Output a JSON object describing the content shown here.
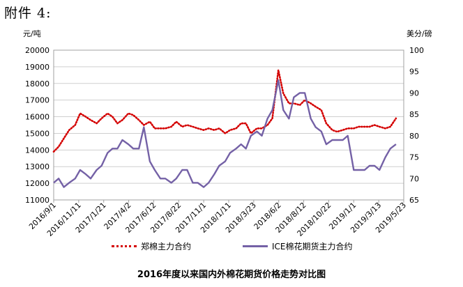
{
  "header": "附件 4:",
  "caption": "2016年度以来国内外棉花期货价格走势对比图",
  "chart_data": {
    "type": "line",
    "title": "2016年度以来国内外棉花期货价格走势对比图",
    "ylabel": "元/吨",
    "y2label": "美分/磅",
    "ylim": [
      11000,
      20000
    ],
    "y2lim": [
      65,
      100
    ],
    "yticks": [
      11000,
      12000,
      13000,
      14000,
      15000,
      16000,
      17000,
      18000,
      19000,
      20000
    ],
    "y2ticks": [
      65,
      70,
      75,
      80,
      85,
      90,
      95,
      100
    ],
    "xlim": [
      "2016-09-01",
      "2019-05-23"
    ],
    "xticks": [
      "2016/9/1",
      "2016/11/11",
      "2017/1/21",
      "2017/4/2",
      "2017/6/12",
      "2017/8/22",
      "2017/11/1",
      "2018/1/11",
      "2018/3/23",
      "2018/6/2",
      "2018/8/12",
      "2018/10/22",
      "2019/1/1",
      "2019/3/13",
      "2019/5/23"
    ],
    "grid": true,
    "legend": "bottom",
    "series": [
      {
        "name": "郑棉主力合约",
        "axis": "left",
        "color": "#d40000",
        "style": "dotted",
        "x": [
          "2016-09-01",
          "2016-09-15",
          "2016-09-30",
          "2016-10-15",
          "2016-11-01",
          "2016-11-15",
          "2016-12-01",
          "2016-12-15",
          "2017-01-01",
          "2017-01-15",
          "2017-02-01",
          "2017-02-15",
          "2017-03-01",
          "2017-03-15",
          "2017-04-01",
          "2017-04-15",
          "2017-05-01",
          "2017-05-15",
          "2017-06-01",
          "2017-06-15",
          "2017-07-01",
          "2017-07-15",
          "2017-08-01",
          "2017-08-15",
          "2017-09-01",
          "2017-09-15",
          "2017-10-01",
          "2017-10-15",
          "2017-11-01",
          "2017-11-15",
          "2017-12-01",
          "2017-12-15",
          "2018-01-01",
          "2018-01-15",
          "2018-02-01",
          "2018-02-15",
          "2018-03-01",
          "2018-03-15",
          "2018-04-01",
          "2018-04-15",
          "2018-05-01",
          "2018-05-15",
          "2018-06-01",
          "2018-06-15",
          "2018-07-01",
          "2018-07-15",
          "2018-08-01",
          "2018-08-15",
          "2018-09-01",
          "2018-09-15",
          "2018-10-01",
          "2018-10-15",
          "2018-11-01",
          "2018-11-15",
          "2018-12-01",
          "2018-12-15",
          "2019-01-01",
          "2019-01-15",
          "2019-02-01",
          "2019-02-15",
          "2019-03-01",
          "2019-03-15",
          "2019-04-01",
          "2019-04-15",
          "2019-05-01"
        ],
        "values": [
          13900,
          14200,
          14700,
          15200,
          15500,
          16200,
          16000,
          15800,
          15600,
          15900,
          16200,
          16000,
          15600,
          15800,
          16200,
          16100,
          15800,
          15500,
          15700,
          15300,
          15300,
          15300,
          15400,
          15700,
          15400,
          15500,
          15400,
          15300,
          15200,
          15300,
          15200,
          15300,
          15000,
          15200,
          15300,
          15600,
          15600,
          15000,
          15300,
          15300,
          15500,
          15900,
          18800,
          17400,
          16800,
          16800,
          16700,
          17000,
          16800,
          16600,
          16400,
          15600,
          15200,
          15100,
          15200,
          15300,
          15300,
          15400,
          15400,
          15400,
          15500,
          15400,
          15300,
          15400,
          15900
        ]
      },
      {
        "name": "ICE棉花期货主力合约",
        "axis": "right",
        "color": "#7461a6",
        "style": "solid",
        "x": [
          "2016-09-01",
          "2016-09-15",
          "2016-09-30",
          "2016-10-15",
          "2016-11-01",
          "2016-11-15",
          "2016-12-01",
          "2016-12-15",
          "2017-01-01",
          "2017-01-15",
          "2017-02-01",
          "2017-02-15",
          "2017-03-01",
          "2017-03-15",
          "2017-04-01",
          "2017-04-15",
          "2017-05-01",
          "2017-05-15",
          "2017-06-01",
          "2017-06-15",
          "2017-07-01",
          "2017-07-15",
          "2017-08-01",
          "2017-08-15",
          "2017-09-01",
          "2017-09-15",
          "2017-10-01",
          "2017-10-15",
          "2017-11-01",
          "2017-11-15",
          "2017-12-01",
          "2017-12-15",
          "2018-01-01",
          "2018-01-15",
          "2018-02-01",
          "2018-02-15",
          "2018-03-01",
          "2018-03-15",
          "2018-04-01",
          "2018-04-15",
          "2018-05-01",
          "2018-05-15",
          "2018-06-01",
          "2018-06-15",
          "2018-07-01",
          "2018-07-15",
          "2018-08-01",
          "2018-08-15",
          "2018-09-01",
          "2018-09-15",
          "2018-10-01",
          "2018-10-15",
          "2018-11-01",
          "2018-11-15",
          "2018-12-01",
          "2018-12-15",
          "2019-01-01",
          "2019-01-15",
          "2019-02-01",
          "2019-02-15",
          "2019-03-01",
          "2019-03-15",
          "2019-04-01",
          "2019-04-15",
          "2019-05-01"
        ],
        "values": [
          69,
          70,
          68,
          69,
          70,
          72,
          71,
          70,
          72,
          73,
          76,
          77,
          77,
          79,
          78,
          77,
          77,
          82,
          74,
          72,
          70,
          70,
          69,
          70,
          72,
          72,
          69,
          69,
          68,
          69,
          71,
          73,
          74,
          76,
          77,
          78,
          77,
          80,
          81,
          80,
          84,
          86,
          93,
          86,
          84,
          89,
          90,
          90,
          84,
          82,
          81,
          78,
          79,
          79,
          79,
          80,
          72,
          72,
          72,
          73,
          73,
          72,
          75,
          77,
          78
        ]
      }
    ]
  }
}
